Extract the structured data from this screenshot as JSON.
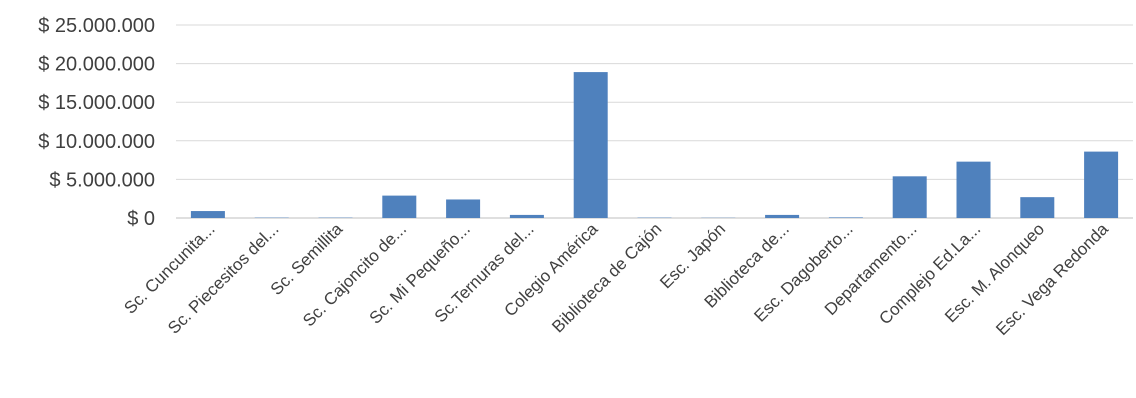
{
  "chart_data": {
    "type": "bar",
    "categories": [
      "Sc. Cuncunita...",
      "Sc. Piecesitos del...",
      "Sc. Semillita",
      "Sc. Cajoncito de...",
      "Sc. Mi Pequeño...",
      "Sc.Ternuras del...",
      "Colegio América",
      "Biblioteca de Cajón",
      "Esc. Japón",
      "Biblioteca de...",
      "Esc. Dagoberto...",
      "Departamento...",
      "Complejo Ed.La...",
      "Esc. M. Alonqueo",
      "Esc. Vega Redonda"
    ],
    "values": [
      900000,
      50000,
      50000,
      2900000,
      2400000,
      400000,
      18900000,
      50000,
      30000,
      400000,
      80000,
      5400000,
      7300000,
      2700000,
      8600000
    ],
    "yticks": [
      0,
      5000000,
      10000000,
      15000000,
      20000000,
      25000000
    ],
    "ytick_labels": [
      "$ 0",
      "$ 5.000.000",
      "$ 10.000.000",
      "$ 15.000.000",
      "$ 20.000.000",
      "$ 25.000.000"
    ],
    "ylim": [
      0,
      25000000
    ],
    "grid": true,
    "bar_color": "#4f81bd",
    "grid_color": "#d9d9d9",
    "axis_color": "#bfbfbf",
    "text_color": "#404040"
  }
}
